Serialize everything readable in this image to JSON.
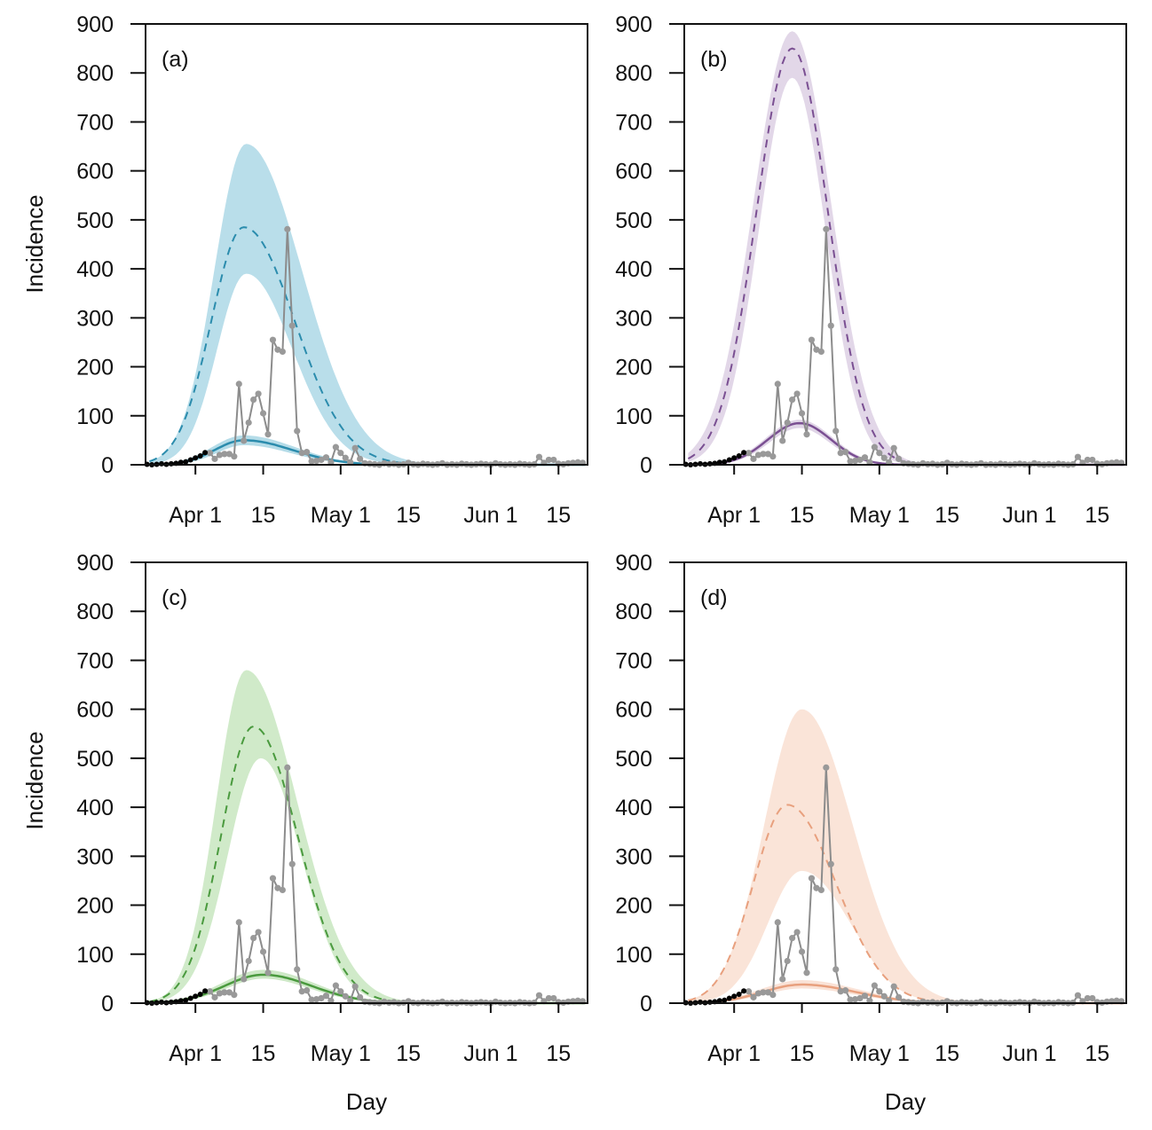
{
  "figure": {
    "y_axis_label": "Incidence",
    "x_axis_label": "Day"
  },
  "chart_data": [
    {
      "panel_label": "(a)",
      "type": "line",
      "xlabel": "",
      "ylabel": "Incidence",
      "xlim_days_from_apr1": [
        -10.3,
        81
      ],
      "ylim": [
        0,
        900
      ],
      "y_ticks": [
        0,
        100,
        200,
        300,
        400,
        500,
        600,
        700,
        800,
        900
      ],
      "y_tick_labels": [
        "0",
        "100",
        "200",
        "300",
        "400",
        "500",
        "600",
        "700",
        "800",
        "900"
      ],
      "x_ticks_days_from_apr1": [
        0,
        14,
        30,
        44,
        61,
        75
      ],
      "x_tick_labels": [
        "Apr 1",
        "15",
        "May 1",
        "15",
        "Jun 1",
        "15"
      ],
      "colors": {
        "band": "#add8e6",
        "line": "#2b8cad"
      },
      "dashed_model": {
        "mean": {
          "peak": 485,
          "peak_day": 10,
          "rise_sd": 6.7,
          "decay_sd": 10.5
        },
        "lower": {
          "peak": 390,
          "peak_day": 10.5,
          "rise_sd": 6.0,
          "decay_sd": 9.5
        },
        "upper": {
          "peak": 655,
          "peak_day": 10.5,
          "rise_sd": 6.6,
          "decay_sd": 11.5
        }
      },
      "solid_model": {
        "mean": {
          "peak": 50,
          "peak_day": 10,
          "rise_sd": 6,
          "decay_sd": 10
        },
        "lower": {
          "peak": 40,
          "peak_day": 10,
          "rise_sd": 5.5,
          "decay_sd": 9.5
        },
        "upper": {
          "peak": 60,
          "peak_day": 10,
          "rise_sd": 6.5,
          "decay_sd": 10.5
        }
      }
    },
    {
      "panel_label": "(b)",
      "type": "line",
      "xlabel": "",
      "ylabel": "",
      "xlim_days_from_apr1": [
        -10.3,
        81
      ],
      "ylim": [
        0,
        900
      ],
      "y_ticks": [
        0,
        100,
        200,
        300,
        400,
        500,
        600,
        700,
        800,
        900
      ],
      "y_tick_labels": [
        "0",
        "100",
        "200",
        "300",
        "400",
        "500",
        "600",
        "700",
        "800",
        "900"
      ],
      "x_ticks_days_from_apr1": [
        0,
        14,
        30,
        44,
        61,
        75
      ],
      "x_tick_labels": [
        "Apr 1",
        "15",
        "May 1",
        "15",
        "Jun 1",
        "15"
      ],
      "colors": {
        "band": "#ddd0e4",
        "line": "#7a4f92"
      },
      "dashed_model": {
        "mean": {
          "peak": 850,
          "peak_day": 12,
          "rise_sd": 7.4,
          "decay_sd": 7.4
        },
        "lower": {
          "peak": 790,
          "peak_day": 12,
          "rise_sd": 6.9,
          "decay_sd": 6.9
        },
        "upper": {
          "peak": 885,
          "peak_day": 12,
          "rise_sd": 8.0,
          "decay_sd": 8.0
        }
      },
      "solid_model": {
        "mean": {
          "peak": 85,
          "peak_day": 13.5,
          "rise_sd": 6.5,
          "decay_sd": 6.5
        },
        "lower": {
          "peak": 75,
          "peak_day": 13.5,
          "rise_sd": 6.2,
          "decay_sd": 6.2
        },
        "upper": {
          "peak": 92,
          "peak_day": 13.5,
          "rise_sd": 6.8,
          "decay_sd": 6.8
        }
      }
    },
    {
      "panel_label": "(c)",
      "type": "line",
      "xlabel": "Day",
      "ylabel": "Incidence",
      "xlim_days_from_apr1": [
        -10.3,
        81
      ],
      "ylim": [
        0,
        900
      ],
      "y_ticks": [
        0,
        100,
        200,
        300,
        400,
        500,
        600,
        700,
        800,
        900
      ],
      "y_tick_labels": [
        "0",
        "100",
        "200",
        "300",
        "400",
        "500",
        "600",
        "700",
        "800",
        "900"
      ],
      "x_ticks_days_from_apr1": [
        0,
        14,
        30,
        44,
        61,
        75
      ],
      "x_tick_labels": [
        "Apr 1",
        "15",
        "May 1",
        "15",
        "Jun 1",
        "15"
      ],
      "colors": {
        "band": "#c8e6c0",
        "line": "#4a9a3e"
      },
      "dashed_model": {
        "mean": {
          "peak": 565,
          "peak_day": 12,
          "rise_sd": 6.7,
          "decay_sd": 9.1
        },
        "lower": {
          "peak": 500,
          "peak_day": 13.5,
          "rise_sd": 6.8,
          "decay_sd": 8.3
        },
        "upper": {
          "peak": 680,
          "peak_day": 10.5,
          "rise_sd": 6.2,
          "decay_sd": 10.5
        }
      },
      "solid_model": {
        "mean": {
          "peak": 58,
          "peak_day": 14,
          "rise_sd": 8,
          "decay_sd": 10
        },
        "lower": {
          "peak": 50,
          "peak_day": 14,
          "rise_sd": 7.5,
          "decay_sd": 9.5
        },
        "upper": {
          "peak": 68,
          "peak_day": 14,
          "rise_sd": 8.5,
          "decay_sd": 10.5
        }
      }
    },
    {
      "panel_label": "(d)",
      "type": "line",
      "xlabel": "Day",
      "ylabel": "",
      "xlim_days_from_apr1": [
        -10.3,
        81
      ],
      "ylim": [
        0,
        900
      ],
      "y_ticks": [
        0,
        100,
        200,
        300,
        400,
        500,
        600,
        700,
        800,
        900
      ],
      "y_tick_labels": [
        "0",
        "100",
        "200",
        "300",
        "400",
        "500",
        "600",
        "700",
        "800",
        "900"
      ],
      "x_ticks_days_from_apr1": [
        0,
        14,
        30,
        44,
        61,
        75
      ],
      "x_tick_labels": [
        "Apr 1",
        "15",
        "May 1",
        "15",
        "Jun 1",
        "15"
      ],
      "colors": {
        "band": "#f9dfd1",
        "line": "#e8a07e"
      },
      "dashed_model": {
        "mean": {
          "peak": 405,
          "peak_day": 11,
          "rise_sd": 7,
          "decay_sd": 10
        },
        "lower": {
          "peak": 270,
          "peak_day": 14,
          "rise_sd": 7,
          "decay_sd": 10
        },
        "upper": {
          "peak": 600,
          "peak_day": 14,
          "rise_sd": 7.8,
          "decay_sd": 10.5
        }
      },
      "solid_model": {
        "mean": {
          "peak": 38,
          "peak_day": 14,
          "rise_sd": 8,
          "decay_sd": 11
        },
        "lower": {
          "peak": 30,
          "peak_day": 14,
          "rise_sd": 7.5,
          "decay_sd": 10.5
        },
        "upper": {
          "peak": 47,
          "peak_day": 14,
          "rise_sd": 8.5,
          "decay_sd": 11.5
        }
      }
    }
  ],
  "observed_data": {
    "early": {
      "color": "#000000",
      "start_day": -10,
      "values": [
        1,
        0,
        1,
        2,
        1,
        2,
        3,
        5,
        6,
        10,
        14,
        18,
        25
      ]
    },
    "later": {
      "color": "#8c8c8c",
      "start_day": 3,
      "values": [
        24,
        12,
        20,
        22,
        22,
        17,
        165,
        49,
        86,
        133,
        145,
        105,
        62,
        255,
        235,
        231,
        481,
        284,
        69,
        24,
        26,
        7,
        8,
        10,
        15,
        5,
        36,
        24,
        14,
        5,
        34,
        12,
        3,
        2,
        1,
        0,
        3,
        1,
        2,
        0,
        1,
        4,
        1,
        0,
        2,
        1,
        0,
        1,
        3,
        0,
        1,
        0,
        2,
        1,
        0,
        1,
        2,
        1,
        0,
        3,
        1,
        0,
        1,
        0,
        2,
        1,
        0,
        1,
        16,
        4,
        10,
        10,
        2,
        1,
        3,
        4,
        5,
        4
      ]
    }
  }
}
